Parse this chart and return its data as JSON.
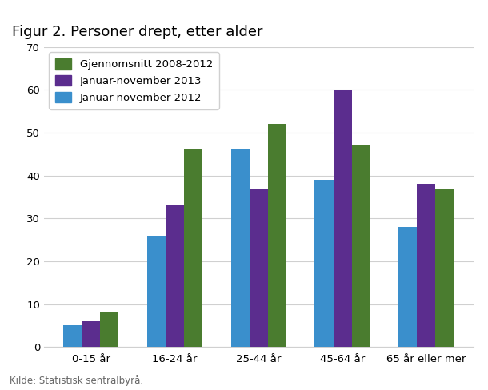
{
  "title": "Figur 2. Personer drept, etter alder",
  "categories": [
    "0-15 år",
    "16-24 år",
    "25-44 år",
    "45-64 år",
    "65 år eller mer"
  ],
  "series": [
    {
      "label": "Gjennomsnitt 2008-2012",
      "color": "#4a7c2f",
      "values": [
        8,
        46,
        52,
        47,
        37
      ]
    },
    {
      "label": "Januar-november 2013",
      "color": "#5b2d8e",
      "values": [
        6,
        33,
        37,
        60,
        38
      ]
    },
    {
      "label": "Januar-november 2012",
      "color": "#3a8fcc",
      "values": [
        5,
        26,
        46,
        39,
        28
      ]
    }
  ],
  "ylim": [
    0,
    70
  ],
  "yticks": [
    0,
    10,
    20,
    30,
    40,
    50,
    60,
    70
  ],
  "source": "Kilde: Statistisk sentralbyrå.",
  "bar_width": 0.22,
  "title_fontsize": 13,
  "tick_fontsize": 9.5,
  "legend_fontsize": 9.5,
  "source_fontsize": 8.5,
  "grid_color": "#d0d0d0",
  "spine_color": "#d0d0d0"
}
